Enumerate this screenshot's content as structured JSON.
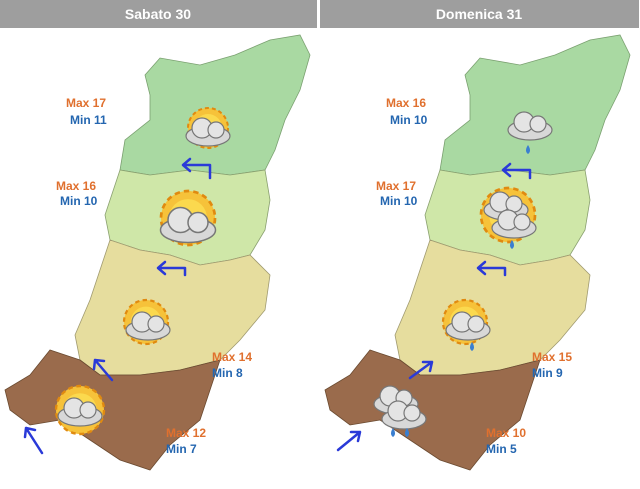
{
  "panels": [
    {
      "title": "Sabato 30",
      "zones": [
        {
          "max": "Max 17",
          "min": "Min 11"
        },
        {
          "max": "Max 16",
          "min": "Min 10"
        },
        {
          "max": "Max 14",
          "min": "Min 8"
        },
        {
          "max": "Max 12",
          "min": "Min 7"
        }
      ]
    },
    {
      "title": "Domenica 31",
      "zones": [
        {
          "max": "Max 16",
          "min": "Min 10"
        },
        {
          "max": "Max 17",
          "min": "Min 10"
        },
        {
          "max": "Max 15",
          "min": "Min 9"
        },
        {
          "max": "Max 10",
          "min": "Min 5"
        }
      ]
    }
  ]
}
